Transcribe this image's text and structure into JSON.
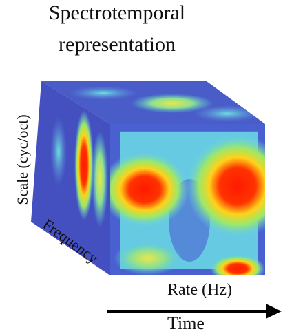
{
  "title": {
    "line1": "Spectrotemporal",
    "line2": "representation"
  },
  "axes": {
    "scale": "Scale (cyc/oct)",
    "frequency": "Frequency",
    "rate": "Rate (Hz)",
    "time": "Time"
  }
}
